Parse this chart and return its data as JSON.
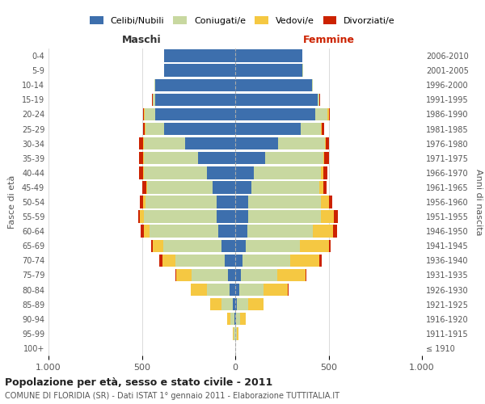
{
  "age_groups": [
    "100+",
    "95-99",
    "90-94",
    "85-89",
    "80-84",
    "75-79",
    "70-74",
    "65-69",
    "60-64",
    "55-59",
    "50-54",
    "45-49",
    "40-44",
    "35-39",
    "30-34",
    "25-29",
    "20-24",
    "15-19",
    "10-14",
    "5-9",
    "0-4"
  ],
  "birth_years": [
    "≤ 1910",
    "1911-1915",
    "1916-1920",
    "1921-1925",
    "1926-1930",
    "1931-1935",
    "1936-1940",
    "1941-1945",
    "1946-1950",
    "1951-1955",
    "1956-1960",
    "1961-1965",
    "1966-1970",
    "1971-1975",
    "1976-1980",
    "1981-1985",
    "1986-1990",
    "1991-1995",
    "1996-2000",
    "2001-2005",
    "2006-2010"
  ],
  "male": {
    "celibi": [
      0,
      2,
      5,
      15,
      30,
      40,
      55,
      75,
      90,
      100,
      100,
      120,
      150,
      200,
      270,
      380,
      430,
      430,
      430,
      380,
      380
    ],
    "coniugati": [
      0,
      5,
      20,
      60,
      120,
      195,
      265,
      310,
      370,
      390,
      380,
      350,
      340,
      290,
      220,
      100,
      55,
      12,
      5,
      2,
      1
    ],
    "vedovi": [
      0,
      5,
      20,
      60,
      90,
      80,
      70,
      55,
      30,
      20,
      12,
      8,
      5,
      5,
      5,
      5,
      5,
      0,
      0,
      0,
      0
    ],
    "divorziati": [
      0,
      0,
      0,
      0,
      0,
      5,
      15,
      12,
      18,
      10,
      18,
      20,
      20,
      20,
      18,
      10,
      5,
      3,
      0,
      0,
      0
    ]
  },
  "female": {
    "nubili": [
      0,
      2,
      5,
      10,
      20,
      30,
      40,
      55,
      65,
      70,
      70,
      85,
      100,
      160,
      230,
      350,
      430,
      440,
      410,
      360,
      360
    ],
    "coniugate": [
      0,
      5,
      20,
      60,
      130,
      195,
      255,
      290,
      350,
      390,
      390,
      365,
      360,
      310,
      250,
      110,
      65,
      12,
      5,
      2,
      1
    ],
    "vedove": [
      0,
      10,
      30,
      80,
      130,
      150,
      155,
      155,
      110,
      70,
      40,
      20,
      10,
      8,
      5,
      5,
      5,
      0,
      0,
      0,
      0
    ],
    "divorziate": [
      0,
      0,
      0,
      0,
      5,
      5,
      15,
      12,
      20,
      18,
      18,
      20,
      22,
      22,
      18,
      10,
      5,
      3,
      0,
      0,
      0
    ]
  },
  "colors": {
    "celibi": "#3d6fad",
    "coniugati": "#c8d8a0",
    "vedovi": "#f5c842",
    "divorziati": "#cc2200"
  },
  "xlim": 1000,
  "title": "Popolazione per età, sesso e stato civile - 2011",
  "subtitle": "COMUNE DI FLORIDIA (SR) - Dati ISTAT 1° gennaio 2011 - Elaborazione TUTTITALIA.IT",
  "ylabel_left": "Fasce di età",
  "ylabel_right": "Anni di nascita",
  "xlabel_left": "Maschi",
  "xlabel_right": "Femmine",
  "legend_labels": [
    "Celibi/Nubili",
    "Coniugati/e",
    "Vedovi/e",
    "Divorziati/e"
  ],
  "tick_vals": [
    -1000,
    -500,
    0,
    500,
    1000
  ],
  "tick_labels": [
    "1.000",
    "500",
    "0",
    "500",
    "1.000"
  ]
}
